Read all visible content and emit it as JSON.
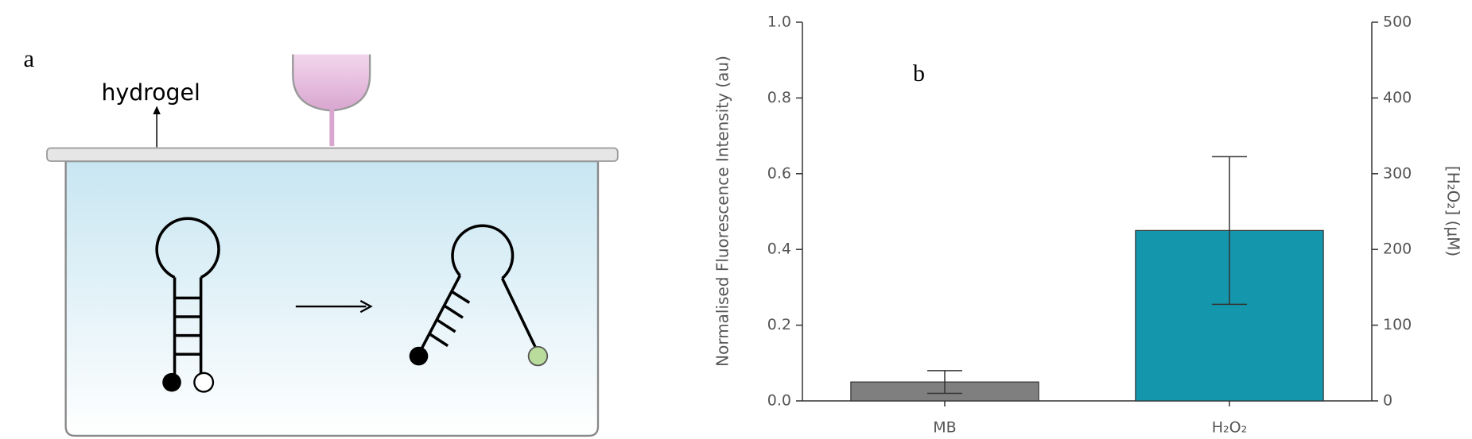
{
  "panel_a": {
    "label": "a",
    "annotation": "hydrogel"
  },
  "chart_data": {
    "type": "bar",
    "panel_label": "b",
    "categories": [
      "MB",
      "H₂O₂"
    ],
    "values": [
      0.05,
      0.45
    ],
    "errors": [
      0.03,
      0.195
    ],
    "colors": [
      "#7f7f7f",
      "#1496ad"
    ],
    "ylabel": "Normalised Fluorescence Intensity (au)",
    "y2label": "[H₂O₂] (μM)",
    "ylim": [
      0,
      1
    ],
    "yticks": [
      {
        "value": 0,
        "label": "0.0"
      },
      0.2,
      0.4,
      0.6,
      0.8,
      {
        "value": 1,
        "label": "1.0"
      }
    ],
    "y2lim": [
      0,
      500
    ],
    "y2ticks": [
      0,
      100,
      200,
      300,
      400,
      500
    ]
  }
}
